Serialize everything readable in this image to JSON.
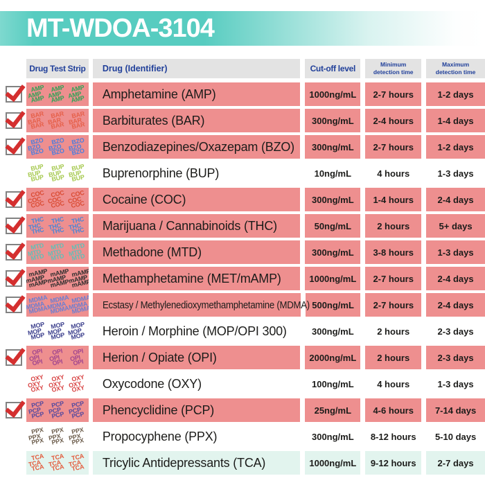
{
  "title": "MT-WDOA-3104",
  "columns": {
    "strip": "Drug Test Strip",
    "drug": "Drug (Identifier)",
    "cutoff": "Cut-off level",
    "min": "Minimum detection time",
    "max": "Maximum detection time"
  },
  "colors": {
    "teal": "#57ccc0",
    "teal_light": "#7ed9cf",
    "pink": "#ee8f8f",
    "mint": "#e2f4ee",
    "navy": "#21409a",
    "check_red": "#d42f2f",
    "header_gray": "#e3e3e3",
    "text": "#1c1c1a"
  },
  "rows": [
    {
      "code": "AMP",
      "strip_color": "#2ea357",
      "name": "Amphetamine (AMP)",
      "cutoff": "1000ng/mL",
      "min": "2-7 hours",
      "max": "1-2 days",
      "checked": true,
      "highlight": "pink"
    },
    {
      "code": "BAR",
      "strip_color": "#e6604a",
      "name": "Barbiturates (BAR)",
      "cutoff": "300ng/mL",
      "min": "2-4 hours",
      "max": "1-4 days",
      "checked": true,
      "highlight": "pink"
    },
    {
      "code": "BZO",
      "strip_color": "#4b7ede",
      "name": "Benzodiazepines/Oxazepam (BZO)",
      "cutoff": "300ng/mL",
      "min": "2-7 hours",
      "max": "1-2 days",
      "checked": true,
      "highlight": "pink"
    },
    {
      "code": "BUP",
      "strip_color": "#a6c94f",
      "name": "Buprenorphine (BUP)",
      "cutoff": "10ng/mL",
      "min": "4 hours",
      "max": "1-3 days",
      "checked": false,
      "highlight": "none"
    },
    {
      "code": "COC",
      "strip_color": "#da4b32",
      "name": "Cocaine (COC)",
      "cutoff": "300ng/mL",
      "min": "1-4 hours",
      "max": "2-4 days",
      "checked": true,
      "highlight": "pink"
    },
    {
      "code": "THC",
      "strip_color": "#4a85d6",
      "name": "Marijuana / Cannabinoids (THC)",
      "cutoff": "50ng/mL",
      "min": "2 hours",
      "max": "5+ days",
      "checked": true,
      "highlight": "pink"
    },
    {
      "code": "MTD",
      "strip_color": "#5fc0b8",
      "name": "Methadone (MTD)",
      "cutoff": "300ng/mL",
      "min": "3-8 hours",
      "max": "1-3 days",
      "checked": true,
      "highlight": "pink"
    },
    {
      "code": "mAMP",
      "strip_color": "#2d2d2d",
      "name": "Methamphetamine (MET/mAMP)",
      "cutoff": "1000ng/mL",
      "min": "2-7 hours",
      "max": "2-4 days",
      "checked": true,
      "highlight": "pink"
    },
    {
      "code": "MDMA",
      "strip_color": "#6a7ed2",
      "name": "Ecstasy / Methylenedioxymethamphetamine (MDMA)",
      "cutoff": "500ng/mL",
      "min": "2-7 hours",
      "max": "2-4 days",
      "checked": true,
      "highlight": "pink",
      "condensed": true
    },
    {
      "code": "MOP",
      "strip_color": "#3c3f8d",
      "name": "Heroin / Morphine (MOP/OPI 300)",
      "cutoff": "300ng/mL",
      "min": "2 hours",
      "max": "2-3 days",
      "checked": false,
      "highlight": "none"
    },
    {
      "code": "OPI",
      "strip_color": "#a0458f",
      "name": "Herion / Opiate (OPI)",
      "cutoff": "2000ng/mL",
      "min": "2 hours",
      "max": "2-3 days",
      "checked": true,
      "highlight": "pink"
    },
    {
      "code": "OXY",
      "strip_color": "#d84343",
      "name": "Oxycodone (OXY)",
      "cutoff": "100ng/mL",
      "min": "4 hours",
      "max": "1-3 days",
      "checked": false,
      "highlight": "none"
    },
    {
      "code": "PCP",
      "strip_color": "#564a9e",
      "name": "Phencyclidine (PCP)",
      "cutoff": "25ng/mL",
      "min": "4-6 hours",
      "max": "7-14 days",
      "checked": true,
      "highlight": "pink"
    },
    {
      "code": "PPX",
      "strip_color": "#6e5f4e",
      "name": "Propocyphene (PPX)",
      "cutoff": "300ng/mL",
      "min": "8-12 hours",
      "max": "5-10 days",
      "checked": false,
      "highlight": "none"
    },
    {
      "code": "TCA",
      "strip_color": "#e4593a",
      "name": "Tricylic Antidepressants (TCA)",
      "cutoff": "1000ng/mL",
      "min": "9-12 hours",
      "max": "2-7 days",
      "checked": false,
      "highlight": "mint"
    }
  ]
}
